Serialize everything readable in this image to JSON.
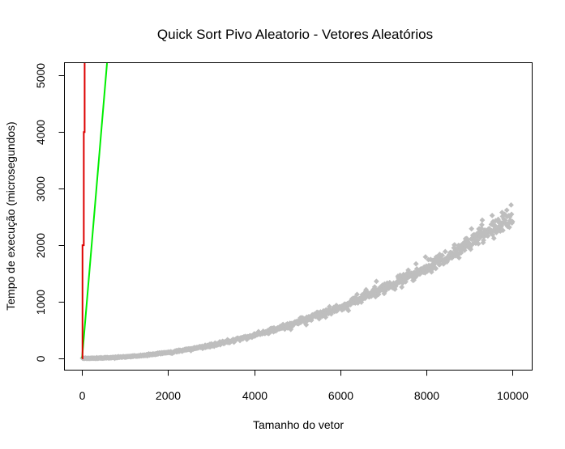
{
  "chart_data": {
    "type": "scatter",
    "title": "Quick Sort Pivo Aleatorio - Vetores Aleatórios",
    "xlabel": "Tamanho do vetor",
    "ylabel": "Tempo de execução (microsegundos)",
    "xlim": [
      -400,
      10450
    ],
    "ylim": [
      -200,
      5220
    ],
    "x_ticks": [
      0,
      2000,
      4000,
      6000,
      8000,
      10000
    ],
    "y_ticks": [
      0,
      1000,
      2000,
      3000,
      4000,
      5000
    ],
    "grid": false,
    "legend": "none",
    "series": [
      {
        "kind": "points",
        "color": "#bebebe",
        "marker": "diamond",
        "x_range": [
          10,
          10000
        ],
        "x_step": 10,
        "approx_curve": "y ≈ 0.0000248·x² + 0.0028·x",
        "samples": [
          {
            "x": 500,
            "y": 15
          },
          {
            "x": 1000,
            "y": 40
          },
          {
            "x": 2000,
            "y": 250
          },
          {
            "x": 3000,
            "y": 450
          },
          {
            "x": 4000,
            "y": 720
          },
          {
            "x": 5000,
            "y": 900
          },
          {
            "x": 6000,
            "y": 1180
          },
          {
            "x": 7000,
            "y": 1480
          },
          {
            "x": 8000,
            "y": 1800
          },
          {
            "x": 9000,
            "y": 2100
          },
          {
            "x": 10000,
            "y": 2550
          }
        ]
      },
      {
        "kind": "line",
        "color": "#00ee00",
        "points": [
          {
            "x": 0,
            "y": 0
          },
          {
            "x": 580,
            "y": 5220
          }
        ]
      },
      {
        "kind": "step-line",
        "color": "#dd0000",
        "points": [
          {
            "x": 0,
            "y": 0
          },
          {
            "x": 10,
            "y": 0
          },
          {
            "x": 10,
            "y": 2000
          },
          {
            "x": 40,
            "y": 2000
          },
          {
            "x": 40,
            "y": 4000
          },
          {
            "x": 60,
            "y": 4000
          },
          {
            "x": 60,
            "y": 5220
          }
        ]
      }
    ]
  }
}
